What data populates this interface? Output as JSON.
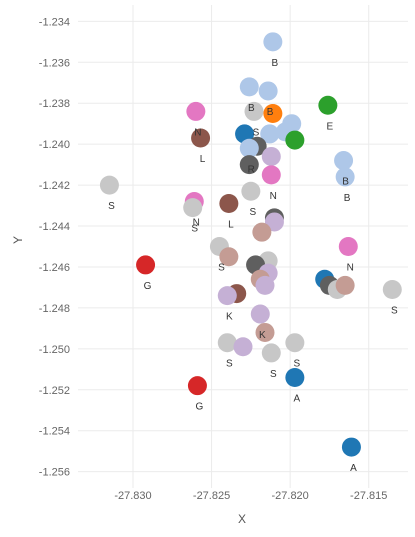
{
  "chart_data": {
    "type": "scatter",
    "xlabel": "X",
    "ylabel": "Y",
    "xlim": [
      -27.8335,
      -27.8125
    ],
    "ylim": [
      -1.2568,
      -1.2332
    ],
    "grid": true,
    "x_ticks": [
      -27.83,
      -27.825,
      -27.82,
      -27.815
    ],
    "x_tick_labels": [
      "-27.830",
      "-27.825",
      "-27.820",
      "-27.815"
    ],
    "y_ticks": [
      -1.234,
      -1.236,
      -1.238,
      -1.24,
      -1.242,
      -1.244,
      -1.246,
      -1.248,
      -1.25,
      -1.252,
      -1.254,
      -1.256
    ],
    "y_tick_labels": [
      "-1.234",
      "-1.236",
      "-1.238",
      "-1.240",
      "-1.242",
      "-1.244",
      "-1.246",
      "-1.248",
      "-1.250",
      "-1.252",
      "-1.254",
      "-1.256"
    ],
    "colors": {
      "gray": "#c7c7c7",
      "lightblue": "#aec7e8",
      "pink": "#e377c2",
      "brown": "#8c564b",
      "darkgray": "#5f5f5f",
      "lavender": "#c5b0d5",
      "rosybrown": "#c49c94",
      "blue": "#1f77b4",
      "green": "#2ca02c",
      "orange": "#ff7f0e",
      "red": "#d62728"
    },
    "points": [
      {
        "x": -27.8211,
        "y": -1.235,
        "color": "lightblue",
        "label": "B"
      },
      {
        "x": -27.8226,
        "y": -1.2372,
        "color": "lightblue",
        "label": "B"
      },
      {
        "x": -27.8214,
        "y": -1.2374,
        "color": "lightblue",
        "label": "B"
      },
      {
        "x": -27.8223,
        "y": -1.2384,
        "color": "gray",
        "label": "S"
      },
      {
        "x": -27.8211,
        "y": -1.2385,
        "color": "orange",
        "label": ""
      },
      {
        "x": -27.826,
        "y": -1.2384,
        "color": "pink",
        "label": "N"
      },
      {
        "x": -27.8176,
        "y": -1.2381,
        "color": "green",
        "label": "E"
      },
      {
        "x": -27.8199,
        "y": -1.239,
        "color": "lightblue",
        "label": ""
      },
      {
        "x": -27.8203,
        "y": -1.2394,
        "color": "lightblue",
        "label": ""
      },
      {
        "x": -27.8213,
        "y": -1.2395,
        "color": "lightblue",
        "label": ""
      },
      {
        "x": -27.8229,
        "y": -1.2395,
        "color": "blue",
        "label": ""
      },
      {
        "x": -27.8257,
        "y": -1.2397,
        "color": "brown",
        "label": "L"
      },
      {
        "x": -27.8197,
        "y": -1.2398,
        "color": "green",
        "label": ""
      },
      {
        "x": -27.8221,
        "y": -1.2401,
        "color": "darkgray",
        "label": ""
      },
      {
        "x": -27.8226,
        "y": -1.2402,
        "color": "lightblue",
        "label": "R"
      },
      {
        "x": -27.8212,
        "y": -1.2406,
        "color": "lavender",
        "label": ""
      },
      {
        "x": -27.8166,
        "y": -1.2408,
        "color": "lightblue",
        "label": "B"
      },
      {
        "x": -27.8226,
        "y": -1.241,
        "color": "darkgray",
        "label": ""
      },
      {
        "x": -27.8212,
        "y": -1.2415,
        "color": "pink",
        "label": "N"
      },
      {
        "x": -27.8165,
        "y": -1.2416,
        "color": "lightblue",
        "label": "B"
      },
      {
        "x": -27.8315,
        "y": -1.242,
        "color": "gray",
        "label": "S"
      },
      {
        "x": -27.8225,
        "y": -1.2423,
        "color": "gray",
        "label": "S"
      },
      {
        "x": -27.8261,
        "y": -1.2428,
        "color": "pink",
        "label": "N"
      },
      {
        "x": -27.8262,
        "y": -1.2431,
        "color": "gray",
        "label": "S"
      },
      {
        "x": -27.8239,
        "y": -1.2429,
        "color": "brown",
        "label": "L"
      },
      {
        "x": -27.821,
        "y": -1.2436,
        "color": "darkgray",
        "label": ""
      },
      {
        "x": -27.821,
        "y": -1.2438,
        "color": "lavender",
        "label": ""
      },
      {
        "x": -27.8218,
        "y": -1.2443,
        "color": "rosybrown",
        "label": ""
      },
      {
        "x": -27.8245,
        "y": -1.245,
        "color": "gray",
        "label": "S"
      },
      {
        "x": -27.8163,
        "y": -1.245,
        "color": "pink",
        "label": "N"
      },
      {
        "x": -27.8239,
        "y": -1.2455,
        "color": "rosybrown",
        "label": ""
      },
      {
        "x": -27.8214,
        "y": -1.2457,
        "color": "gray",
        "label": ""
      },
      {
        "x": -27.8292,
        "y": -1.2459,
        "color": "red",
        "label": "G"
      },
      {
        "x": -27.8222,
        "y": -1.2459,
        "color": "darkgray",
        "label": ""
      },
      {
        "x": -27.8214,
        "y": -1.2463,
        "color": "lavender",
        "label": ""
      },
      {
        "x": -27.8219,
        "y": -1.2466,
        "color": "rosybrown",
        "label": ""
      },
      {
        "x": -27.8178,
        "y": -1.2466,
        "color": "blue",
        "label": ""
      },
      {
        "x": -27.8216,
        "y": -1.2469,
        "color": "lavender",
        "label": ""
      },
      {
        "x": -27.8175,
        "y": -1.2469,
        "color": "darkgray",
        "label": ""
      },
      {
        "x": -27.817,
        "y": -1.2471,
        "color": "gray",
        "label": ""
      },
      {
        "x": -27.8165,
        "y": -1.2469,
        "color": "rosybrown",
        "label": ""
      },
      {
        "x": -27.8135,
        "y": -1.2471,
        "color": "gray",
        "label": "S"
      },
      {
        "x": -27.8234,
        "y": -1.2473,
        "color": "brown",
        "label": ""
      },
      {
        "x": -27.824,
        "y": -1.2474,
        "color": "lavender",
        "label": "K"
      },
      {
        "x": -27.8219,
        "y": -1.2483,
        "color": "lavender",
        "label": "K"
      },
      {
        "x": -27.8216,
        "y": -1.2492,
        "color": "rosybrown",
        "label": ""
      },
      {
        "x": -27.824,
        "y": -1.2497,
        "color": "gray",
        "label": "S"
      },
      {
        "x": -27.8197,
        "y": -1.2497,
        "color": "gray",
        "label": "S"
      },
      {
        "x": -27.823,
        "y": -1.2499,
        "color": "lavender",
        "label": ""
      },
      {
        "x": -27.8212,
        "y": -1.2502,
        "color": "gray",
        "label": "S"
      },
      {
        "x": -27.8197,
        "y": -1.2514,
        "color": "blue",
        "label": "A"
      },
      {
        "x": -27.8259,
        "y": -1.2518,
        "color": "red",
        "label": "G"
      },
      {
        "x": -27.8161,
        "y": -1.2548,
        "color": "blue",
        "label": "A"
      }
    ]
  }
}
